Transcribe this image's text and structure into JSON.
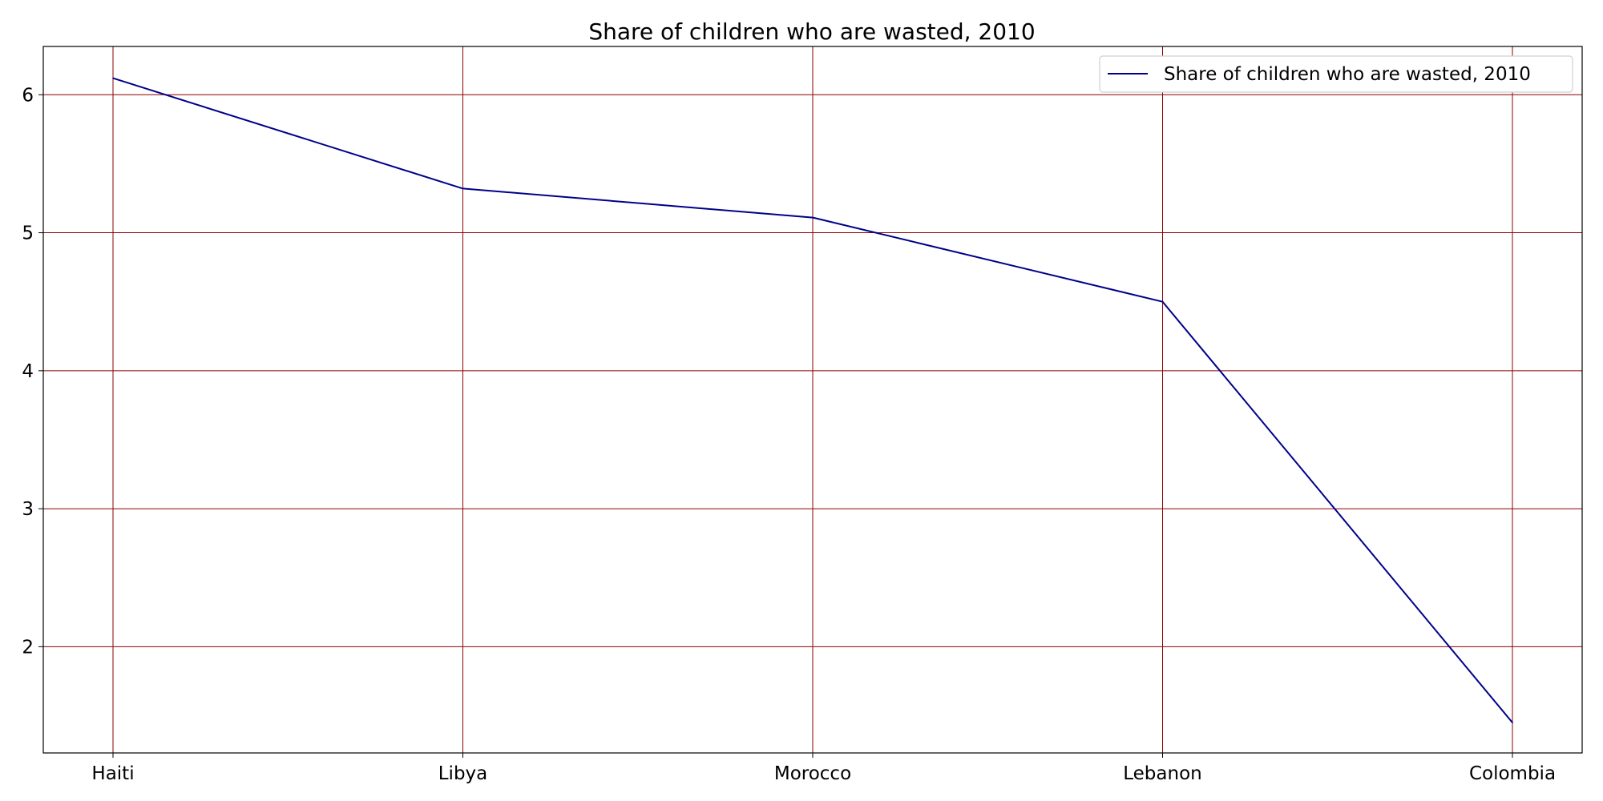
{
  "chart_data": {
    "type": "line",
    "title": "Share of children who are wasted, 2010",
    "xlabel": "",
    "ylabel": "",
    "categories": [
      "Haiti",
      "Libya",
      "Morocco",
      "Lebanon",
      "Colombia"
    ],
    "series": [
      {
        "name": "Share of children who are wasted, 2010",
        "values": [
          6.12,
          5.32,
          5.11,
          4.5,
          1.45
        ],
        "color": "#00008b"
      }
    ],
    "ylim": [
      1.23,
      6.35
    ],
    "yticks": [
      "2",
      "3",
      "4",
      "5",
      "6"
    ],
    "grid": true,
    "grid_color": "#8b0000",
    "legend_position": "top-right"
  }
}
